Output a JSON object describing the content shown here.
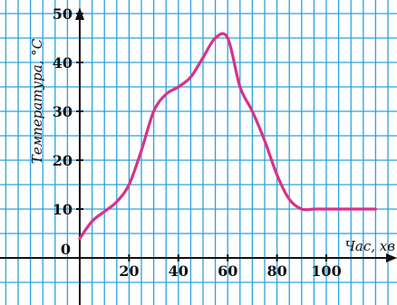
{
  "colors": {
    "grid": "#2aa3dc",
    "axis": "#111111",
    "line": "#d6338a",
    "background": "#ffffff"
  },
  "chart_data": {
    "type": "line",
    "title": "",
    "xlabel": "Час, хв",
    "ylabel": "Температура, °С",
    "xlim": [
      -30,
      132
    ],
    "ylim": [
      -6,
      57
    ],
    "grid": true,
    "grid_step": 5,
    "x_ticks": [
      20,
      40,
      60,
      80,
      100
    ],
    "y_ticks": [
      10,
      20,
      30,
      40,
      50
    ],
    "origin_label": "0",
    "series": [
      {
        "x": [
          0,
          5,
          10,
          15,
          20,
          25,
          30,
          35,
          40,
          45,
          50,
          55,
          60,
          65,
          70,
          75,
          80,
          85,
          90,
          95,
          100,
          110,
          120
        ],
        "values": [
          4,
          7.5,
          9.5,
          11.5,
          15,
          22,
          30,
          33.5,
          35,
          37,
          41,
          45,
          45,
          35,
          30,
          24,
          17,
          12,
          10,
          10,
          10,
          10,
          10
        ]
      }
    ]
  }
}
